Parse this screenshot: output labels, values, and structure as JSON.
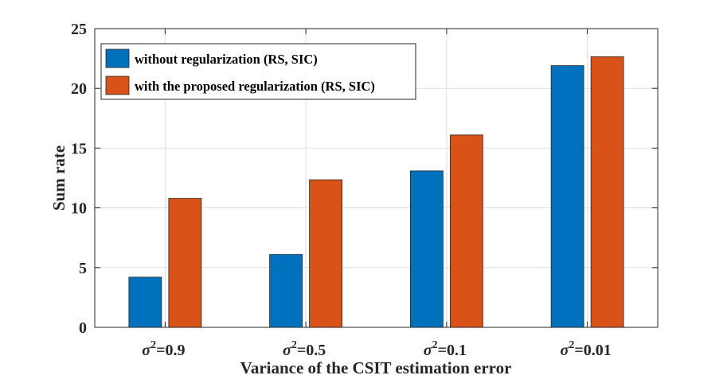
{
  "chart_data": {
    "type": "bar",
    "title": "",
    "xlabel": "Variance of the CSIT estimation error",
    "ylabel": "Sum rate",
    "ylim": [
      0,
      25
    ],
    "yticks": [
      "0",
      "5",
      "10",
      "15",
      "20",
      "25"
    ],
    "grid": true,
    "legend_position": "top-left",
    "categories": [
      {
        "symbol": "σ",
        "sup": "2",
        "rest": "=0.9"
      },
      {
        "symbol": "σ",
        "sup": "2",
        "rest": "=0.5"
      },
      {
        "symbol": "σ",
        "sup": "2",
        "rest": "=0.1"
      },
      {
        "symbol": "σ",
        "sup": "2",
        "rest": "=0.01"
      }
    ],
    "series": [
      {
        "name": "without regularization (RS, SIC)",
        "color": "#0072BD",
        "values": [
          4.2,
          6.1,
          13.1,
          21.9
        ]
      },
      {
        "name": "with the proposed regularization (RS, SIC)",
        "color": "#D95319",
        "values": [
          10.8,
          12.35,
          16.1,
          22.65
        ]
      }
    ]
  }
}
